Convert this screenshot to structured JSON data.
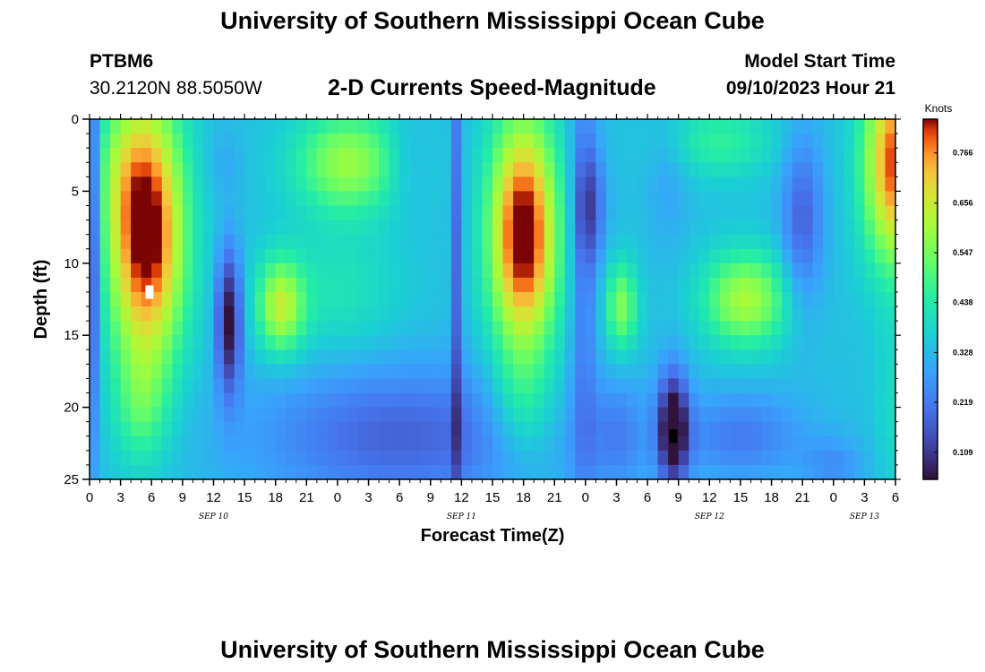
{
  "header": {
    "title": "University of Southern Mississippi Ocean Cube",
    "station": "PTBM6",
    "coords": "30.2120N  88.5050W",
    "subtitle": "2-D Currents Speed-Magnitude",
    "model_start_label": "Model Start Time",
    "model_start_value": "09/10/2023 Hour 21"
  },
  "footer": {
    "title": "University of Southern Mississippi Ocean Cube"
  },
  "chart_data": {
    "type": "heatmap",
    "title": "2-D Currents Speed-Magnitude",
    "xlabel": "Forecast Time(Z)",
    "ylabel": "Depth (ft)",
    "x_range_hours": [
      0,
      78
    ],
    "ylim": [
      0,
      25
    ],
    "y_inverted": true,
    "y_ticks": [
      "0",
      "5",
      "10",
      "15",
      "20",
      "25"
    ],
    "x_tick_labels": [
      "0",
      "3",
      "6",
      "9",
      "12",
      "15",
      "18",
      "21",
      "0",
      "3",
      "6",
      "9",
      "12",
      "15",
      "18",
      "21",
      "0",
      "3",
      "6",
      "9",
      "12",
      "15",
      "18",
      "21",
      "0",
      "3",
      "6"
    ],
    "date_labels": [
      {
        "label": "SEP 10",
        "hour": 12
      },
      {
        "label": "SEP 11",
        "hour": 36
      },
      {
        "label": "SEP 12",
        "hour": 60
      },
      {
        "label": "SEP 13",
        "hour": 75
      }
    ],
    "colorbar": {
      "unit": "Knots",
      "ticks": [
        "0.766",
        "0.656",
        "0.547",
        "0.438",
        "0.328",
        "0.219",
        "0.109"
      ],
      "min": 0.05,
      "max": 0.84
    },
    "features": [
      {
        "hour": 5.5,
        "depth": 8,
        "speed": 0.82,
        "note": "surface-to-mid maximum"
      },
      {
        "hour": 13.5,
        "depth": 13,
        "speed": 0.13,
        "note": "mid-depth minimum"
      },
      {
        "hour": 18,
        "depth": 13,
        "speed": 0.62
      },
      {
        "hour": 3,
        "depth": 3,
        "speed": 0.62
      },
      {
        "hour": 42,
        "depth": 8,
        "speed": 0.82
      },
      {
        "hour": 48.5,
        "depth": 6,
        "speed": 0.15
      },
      {
        "hour": 52,
        "depth": 13,
        "speed": 0.52
      },
      {
        "hour": 56.5,
        "depth": 22,
        "speed": 0.06,
        "note": "near-bottom minimum"
      },
      {
        "hour": 64,
        "depth": 12,
        "speed": 0.57
      },
      {
        "hour": 77,
        "depth": 4,
        "speed": 0.72
      }
    ],
    "markers": [
      {
        "type": "max",
        "hour": 5.8,
        "depth": 12,
        "color": "#ffffff"
      },
      {
        "type": "min",
        "hour": 56.5,
        "depth": 22,
        "color": "#000000"
      }
    ]
  }
}
